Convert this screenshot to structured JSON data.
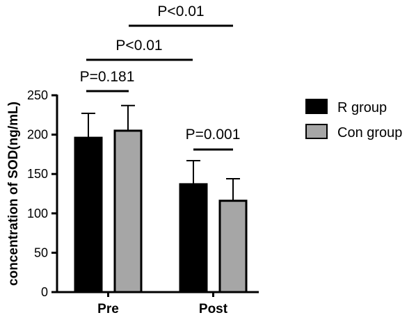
{
  "chart_data": {
    "type": "bar",
    "ylabel": "concentration of SOD(ng/mL)",
    "xlabel": "",
    "ylim": [
      0,
      250
    ],
    "yticks": [
      0,
      50,
      100,
      150,
      200,
      250
    ],
    "categories": [
      "Pre",
      "Post"
    ],
    "series": [
      {
        "name": "R group",
        "color": "#000000",
        "values": [
          196,
          137
        ],
        "errors": [
          31,
          30
        ]
      },
      {
        "name": "Con group",
        "color": "#a6a6a6",
        "values": [
          205,
          116
        ],
        "errors": [
          32,
          28
        ]
      }
    ],
    "comparisons": [
      {
        "label": "P=0.181",
        "between": "Pre: R group vs Con group"
      },
      {
        "label": "P=0.001",
        "between": "Post: R group vs Con group"
      },
      {
        "label": "P<0.01",
        "between": "R group: Pre vs Post"
      },
      {
        "label": "P<0.01",
        "between": "Con group: Pre vs Post"
      }
    ],
    "legend_position": "right",
    "grid": false
  }
}
